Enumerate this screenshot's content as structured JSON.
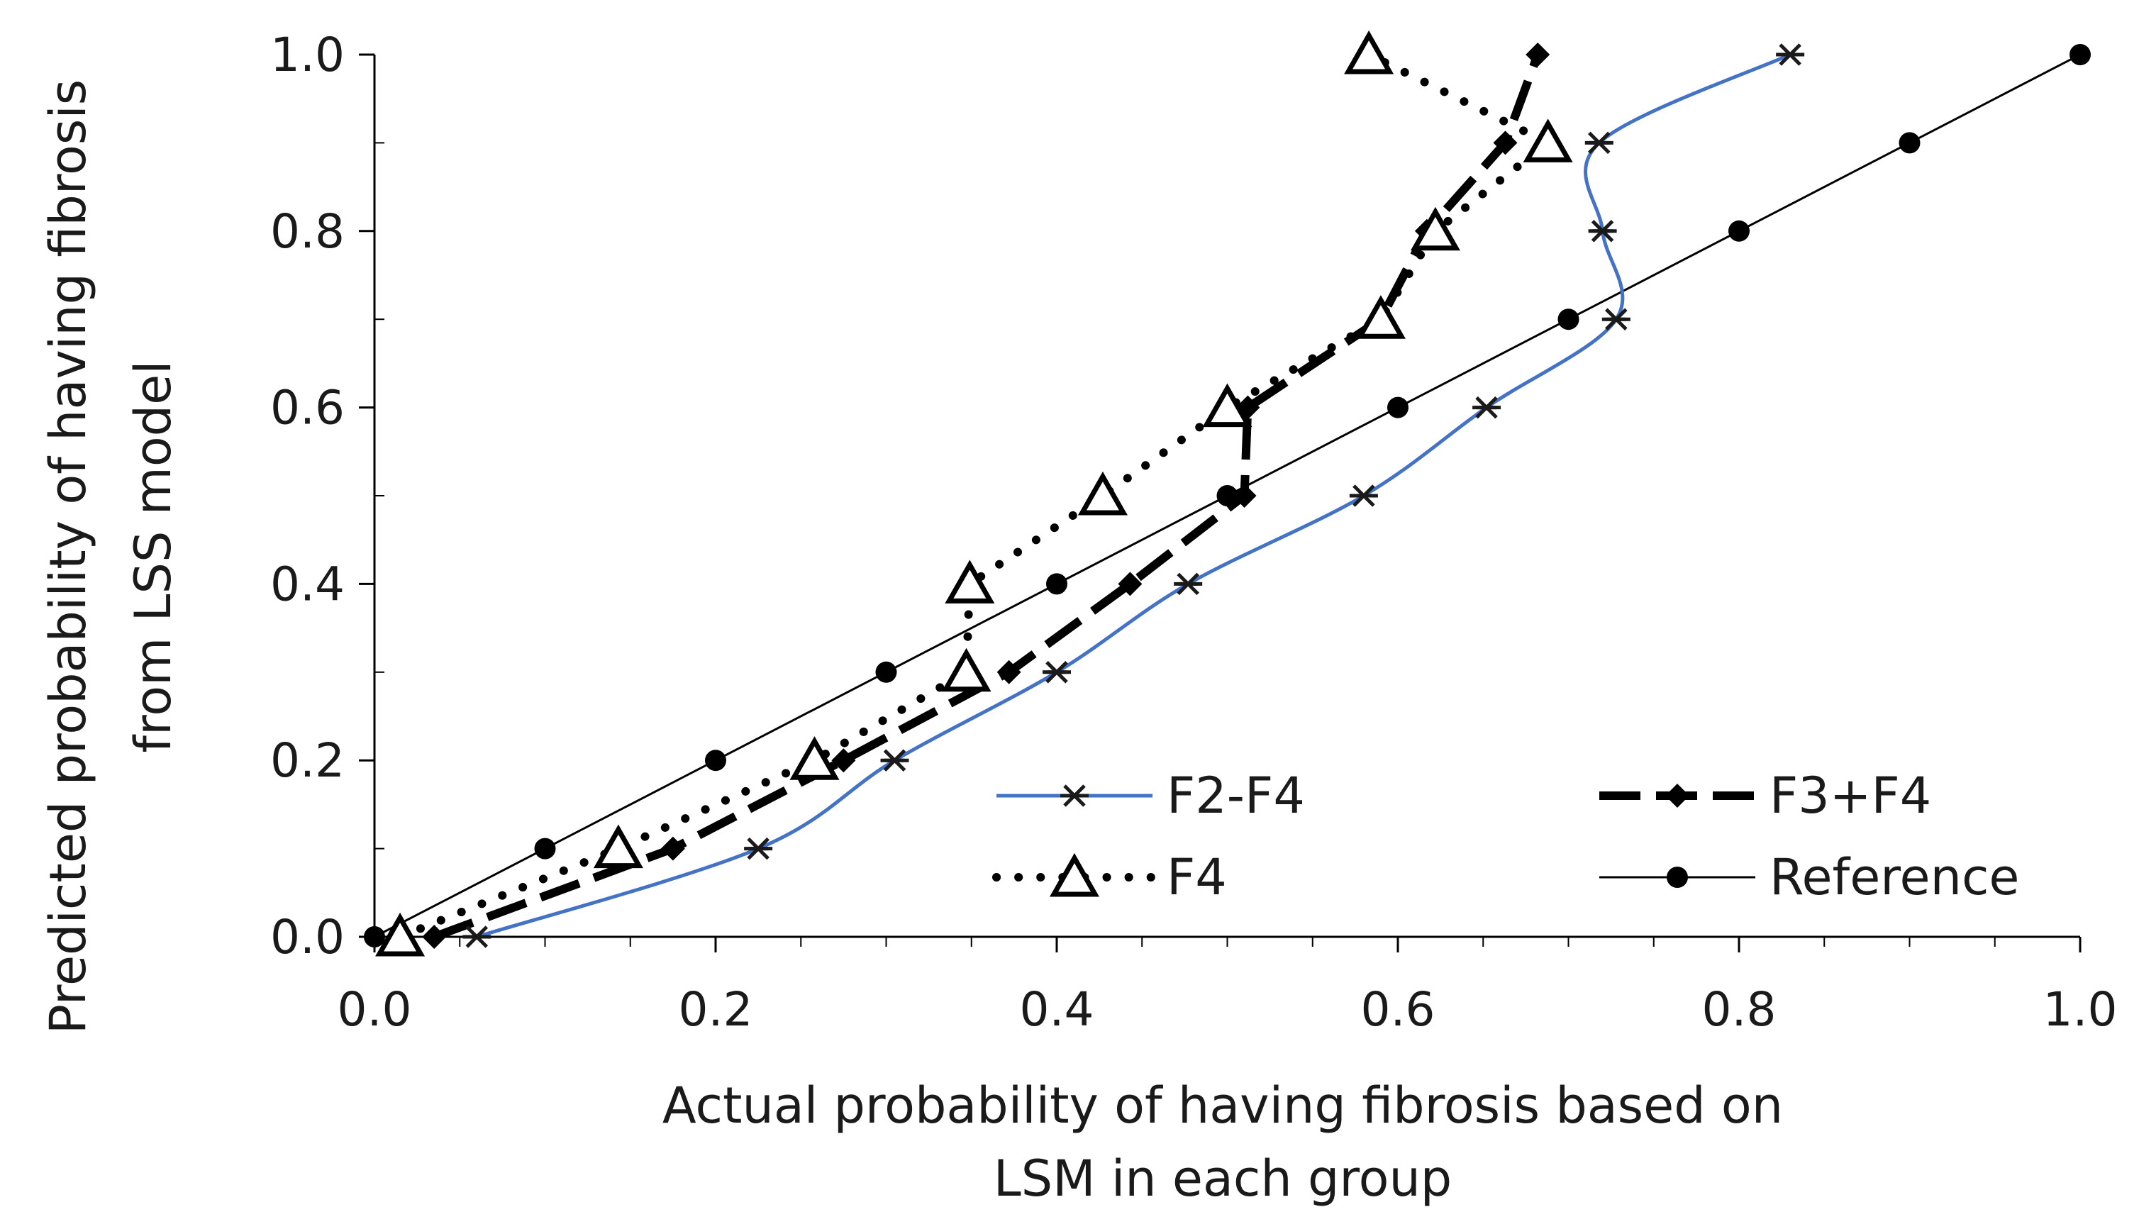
{
  "chart_data": {
    "type": "scatter",
    "title": "",
    "xlabel": [
      "Actual probability of having fibrosis based on",
      "LSM in each group"
    ],
    "ylabel": [
      "Predicted probability of having fibrosis",
      "from LSS model"
    ],
    "xlim": [
      0,
      1
    ],
    "ylim": [
      0,
      1
    ],
    "x_ticks": [
      0.0,
      0.2,
      0.4,
      0.6,
      0.8,
      1.0
    ],
    "x_tick_labels": [
      "0.0",
      "0.2",
      "0.4",
      "0.6",
      "0.8",
      "1.0"
    ],
    "y_ticks": [
      0.0,
      0.2,
      0.4,
      0.6,
      0.8,
      1.0
    ],
    "y_tick_labels": [
      "0.0",
      "0.2",
      "0.4",
      "0.6",
      "0.8",
      "1.0"
    ],
    "grid": false,
    "legend_position": "bottom-right",
    "series": [
      {
        "name": "F2-F4",
        "style": "solid-smooth",
        "marker": "asterisk",
        "color": "#4472c4",
        "marker_color": "#1a1a1a",
        "x": [
          0.06,
          0.225,
          0.305,
          0.4,
          0.477,
          0.58,
          0.652,
          0.728,
          0.72,
          0.718,
          0.83
        ],
        "y": [
          0.0,
          0.1,
          0.2,
          0.3,
          0.4,
          0.5,
          0.6,
          0.7,
          0.8,
          0.9,
          1.0
        ]
      },
      {
        "name": "F3+F4",
        "style": "long-dash",
        "marker": "diamond",
        "color": "#000000",
        "marker_color": "#000000",
        "x": [
          0.035,
          0.175,
          0.275,
          0.372,
          0.443,
          0.51,
          0.512,
          0.59,
          0.617,
          0.663,
          0.682
        ],
        "y": [
          0.0,
          0.1,
          0.2,
          0.3,
          0.4,
          0.5,
          0.6,
          0.7,
          0.8,
          0.9,
          1.0
        ]
      },
      {
        "name": "F4",
        "style": "dotted",
        "marker": "triangle-open",
        "color": "#000000",
        "marker_color": "#000000",
        "x": [
          0.015,
          0.143,
          0.258,
          0.347,
          0.349,
          0.427,
          0.5,
          0.59,
          0.622,
          0.688,
          0.583
        ],
        "y": [
          0.0,
          0.1,
          0.2,
          0.3,
          0.4,
          0.5,
          0.6,
          0.7,
          0.8,
          0.9,
          1.0
        ]
      },
      {
        "name": "Reference",
        "style": "thin-solid",
        "marker": "circle",
        "color": "#000000",
        "marker_color": "#000000",
        "x": [
          0.0,
          0.1,
          0.2,
          0.3,
          0.4,
          0.5,
          0.6,
          0.7,
          0.8,
          0.9,
          1.0
        ],
        "y": [
          0.0,
          0.1,
          0.2,
          0.3,
          0.4,
          0.5,
          0.6,
          0.7,
          0.8,
          0.9,
          1.0
        ]
      }
    ]
  }
}
